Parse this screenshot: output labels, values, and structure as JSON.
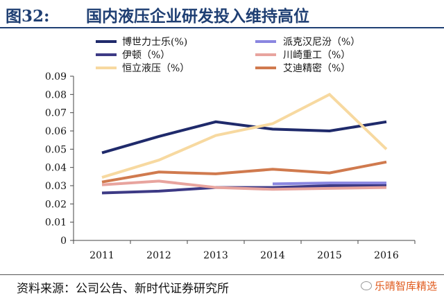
{
  "header": {
    "figure_number": "图32:",
    "title": "国内液压企业研发投入维持高位"
  },
  "footer": {
    "source": "资料来源：公司公告、新时代证券研究所",
    "watermark": "乐晴智库精选"
  },
  "chart_data": {
    "type": "line",
    "x": [
      "2011",
      "2012",
      "2013",
      "2014",
      "2015",
      "2016"
    ],
    "ylim": [
      0,
      0.09
    ],
    "yticks": [
      "0",
      "0.01",
      "0.02",
      "0.03",
      "0.04",
      "0.05",
      "0.06",
      "0.07",
      "0.08",
      "0.09"
    ],
    "grid": false,
    "legend_position": "top",
    "series": [
      {
        "name": "博世力士乐(%)",
        "color": "#1f2a6b",
        "values": [
          0.048,
          0.057,
          0.065,
          0.061,
          0.06,
          0.065
        ]
      },
      {
        "name": "派克汉尼汾（%）",
        "color": "#8a86e0",
        "values": [
          null,
          null,
          null,
          0.031,
          0.0315,
          0.0315
        ]
      },
      {
        "name": "伊顿（%）",
        "color": "#3d3a85",
        "values": [
          0.026,
          0.027,
          0.029,
          0.029,
          0.03,
          0.03
        ]
      },
      {
        "name": "川崎重工（%）",
        "color": "#e8a49e",
        "values": [
          0.0305,
          0.0325,
          0.029,
          0.028,
          0.0285,
          0.029
        ]
      },
      {
        "name": "恒立液压（%）",
        "color": "#f7d9a0",
        "values": [
          0.0345,
          0.044,
          0.0575,
          0.064,
          0.08,
          0.05
        ]
      },
      {
        "name": "艾迪精密（%）",
        "color": "#d07a4e",
        "values": [
          0.032,
          0.0375,
          0.0365,
          0.039,
          0.037,
          0.043
        ]
      }
    ]
  }
}
